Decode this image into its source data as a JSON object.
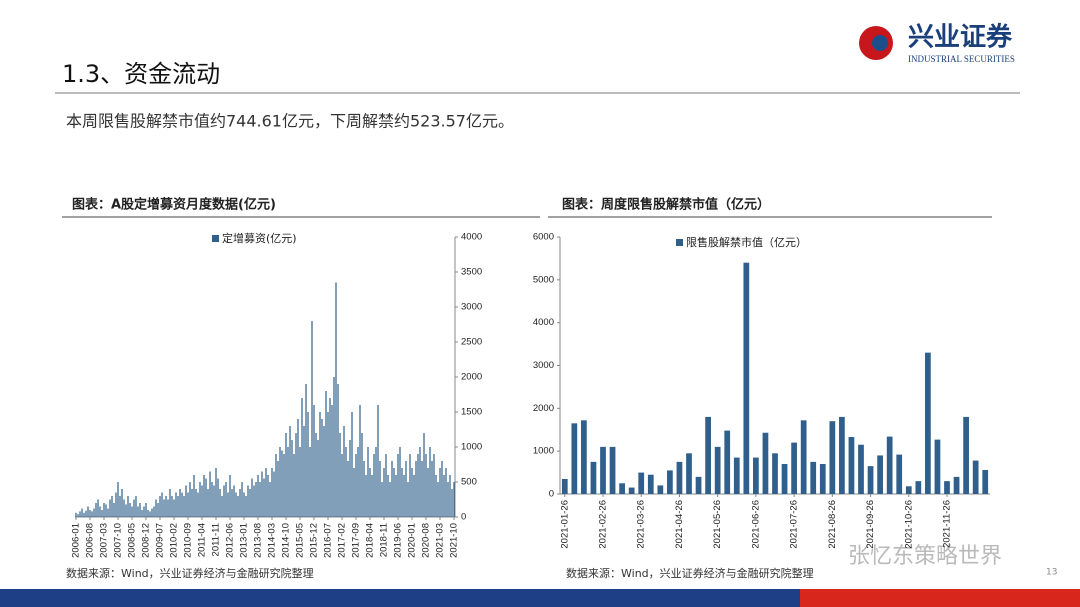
{
  "header": {
    "logo": "兴业证券",
    "logo_en": "INDUSTRIAL SECURITIES",
    "title": "1.3、资金流动",
    "text": "本周限售股解禁市值约744.61亿元，下周解禁约523.57亿元。",
    "watermark": "张忆东策略世界",
    "page": "13"
  },
  "chart_data": [
    {
      "type": "bar",
      "title": "图表：A股定增募资月度数据(亿元)",
      "source": "数据来源：Wind，兴业证券经济与金融研究院整理",
      "yaxis_side": "right",
      "color": "#2f5f8a",
      "ylim": [
        0,
        4000
      ],
      "yticks": [
        0,
        500,
        1000,
        1500,
        2000,
        2500,
        3000,
        3500,
        4000
      ],
      "categories": [
        "2006-01",
        null,
        null,
        null,
        null,
        null,
        null,
        "2006-08",
        null,
        null,
        null,
        null,
        null,
        null,
        "2007-03",
        null,
        null,
        null,
        null,
        null,
        null,
        "2007-10",
        null,
        null,
        null,
        null,
        null,
        null,
        "2008-05",
        null,
        null,
        null,
        null,
        null,
        null,
        "2008-12",
        null,
        null,
        null,
        null,
        null,
        null,
        "2009-07",
        null,
        null,
        null,
        null,
        null,
        null,
        "2010-02",
        null,
        null,
        null,
        null,
        null,
        null,
        "2010-09",
        null,
        null,
        null,
        null,
        null,
        null,
        "2011-04",
        null,
        null,
        null,
        null,
        null,
        null,
        "2011-11",
        null,
        null,
        null,
        null,
        null,
        null,
        "2012-06",
        null,
        null,
        null,
        null,
        null,
        null,
        "2013-01",
        null,
        null,
        null,
        null,
        null,
        null,
        "2013-08",
        null,
        null,
        null,
        null,
        null,
        null,
        "2014-03",
        null,
        null,
        null,
        null,
        null,
        null,
        "2014-10",
        null,
        null,
        null,
        null,
        null,
        null,
        "2015-05",
        null,
        null,
        null,
        null,
        null,
        null,
        "2015-12",
        null,
        null,
        null,
        null,
        null,
        null,
        "2016-07",
        null,
        null,
        null,
        null,
        null,
        null,
        "2017-02",
        null,
        null,
        null,
        null,
        null,
        null,
        "2017-09",
        null,
        null,
        null,
        null,
        null,
        null,
        "2018-04",
        null,
        null,
        null,
        null,
        null,
        null,
        "2018-11",
        null,
        null,
        null,
        null,
        null,
        null,
        "2019-06",
        null,
        null,
        null,
        null,
        null,
        null,
        "2020-01",
        null,
        null,
        null,
        null,
        null,
        null,
        "2020-08",
        null,
        null,
        null,
        null,
        null,
        null,
        "2021-03",
        null,
        null,
        null,
        null,
        null,
        null,
        "2021-10"
      ],
      "series": [
        {
          "name": "定增募资(亿元)",
          "color": "#2f5f8a",
          "values": [
            60,
            40,
            80,
            120,
            60,
            90,
            150,
            100,
            80,
            120,
            200,
            250,
            150,
            100,
            200,
            180,
            120,
            250,
            300,
            200,
            350,
            500,
            300,
            400,
            250,
            180,
            300,
            200,
            150,
            250,
            300,
            150,
            200,
            100,
            150,
            200,
            100,
            80,
            120,
            150,
            250,
            200,
            300,
            350,
            250,
            300,
            250,
            400,
            300,
            250,
            350,
            300,
            400,
            350,
            300,
            450,
            350,
            500,
            400,
            600,
            400,
            350,
            500,
            450,
            600,
            550,
            400,
            650,
            500,
            450,
            700,
            550,
            400,
            300,
            450,
            500,
            350,
            600,
            400,
            450,
            350,
            300,
            400,
            500,
            350,
            300,
            450,
            400,
            550,
            450,
            500,
            600,
            500,
            650,
            550,
            700,
            600,
            500,
            700,
            650,
            900,
            800,
            1000,
            950,
            900,
            1200,
            1000,
            1300,
            1100,
            900,
            1200,
            1400,
            1000,
            1700,
            1300,
            1900,
            1500,
            1000,
            2800,
            1600,
            1200,
            1100,
            1500,
            1400,
            1300,
            1800,
            1500,
            1700,
            1600,
            2000,
            3350,
            1900,
            1200,
            900,
            1300,
            1000,
            800,
            1100,
            1500,
            700,
            900,
            1000,
            1600,
            1200,
            800,
            600,
            1000,
            700,
            600,
            900,
            1000,
            1600,
            800,
            500,
            700,
            900,
            600,
            500,
            800,
            700,
            600,
            900,
            1000,
            700,
            600,
            800,
            500,
            900,
            700,
            600,
            800,
            900,
            1000,
            800,
            1200,
            900,
            700,
            1000,
            800,
            900,
            600,
            500,
            700,
            800,
            600,
            700,
            500,
            600,
            400,
            500
          ]
        }
      ]
    },
    {
      "type": "bar",
      "title": "图表：周度限售股解禁市值（亿元）",
      "source": "数据来源：Wind，兴业证券经济与金融研究院整理",
      "yaxis_side": "left",
      "color": "#2f5f8a",
      "ylim": [
        0,
        6000
      ],
      "yticks": [
        0,
        1000,
        2000,
        3000,
        4000,
        5000,
        6000
      ],
      "categories": [
        "2021-01-26",
        null,
        null,
        null,
        "2021-02-26",
        null,
        null,
        null,
        "2021-03-26",
        null,
        null,
        null,
        "2021-04-26",
        null,
        null,
        null,
        "2021-05-26",
        null,
        null,
        null,
        "2021-06-26",
        null,
        null,
        null,
        "2021-07-26",
        null,
        null,
        null,
        "2021-08-26",
        null,
        null,
        null,
        "2021-09-26",
        null,
        null,
        null,
        "2021-10-26",
        null,
        null,
        null,
        "2021-11-26",
        null,
        null,
        null,
        null
      ],
      "series": [
        {
          "name": "限售股解禁市值（亿元）",
          "color": "#2f5f8a",
          "values": [
            350,
            1650,
            1720,
            750,
            1100,
            1100,
            250,
            150,
            500,
            450,
            200,
            550,
            750,
            950,
            400,
            1800,
            1100,
            1480,
            850,
            5400,
            850,
            1430,
            950,
            700,
            1200,
            1720,
            750,
            700,
            1700,
            1800,
            1330,
            1150,
            650,
            900,
            1340,
            920,
            180,
            300,
            3300,
            1270,
            300,
            400,
            1800,
            780,
            560
          ]
        }
      ]
    }
  ]
}
